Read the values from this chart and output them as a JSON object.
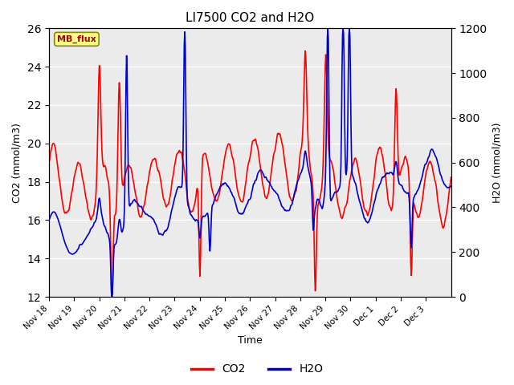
{
  "title": "LI7500 CO2 and H2O",
  "xlabel": "Time",
  "ylabel_left": "CO2 (mmol/m3)",
  "ylabel_right": "H2O (mmol/m3)",
  "co2_color": "#FF0000",
  "h2o_color": "#0000CC",
  "ylim_left": [
    12,
    26
  ],
  "ylim_right": [
    0,
    1200
  ],
  "yticks_left": [
    12,
    14,
    16,
    18,
    20,
    22,
    24,
    26
  ],
  "yticks_right": [
    0,
    200,
    400,
    600,
    800,
    1000,
    1200
  ],
  "xtick_labels": [
    "Nov 18",
    "Nov 19",
    "Nov 20",
    "Nov 21",
    "Nov 22",
    "Nov 23",
    "Nov 24",
    "Nov 25",
    "Nov 26",
    "Nov 27",
    "Nov 28",
    "Nov 29",
    "Nov 30",
    "Dec 1",
    "Dec 2",
    "Dec 3"
  ],
  "watermark_text": "MB_flux",
  "watermark_bg": "#FFFF88",
  "watermark_fg": "#AA0000",
  "plot_bg": "#EBEBEB",
  "line_width": 1.2,
  "legend_items": [
    "CO2",
    "H2O"
  ],
  "legend_colors": [
    "#FF0000",
    "#0000CC"
  ]
}
